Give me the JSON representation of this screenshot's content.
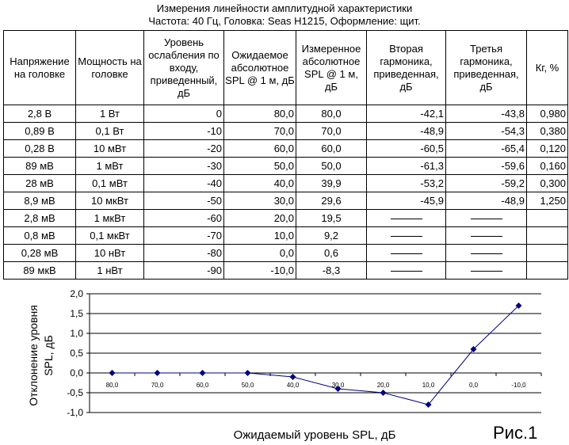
{
  "title_line1": "Измерения линейности амплитудной характеристики",
  "title_line2": "Частота: 40 Гц, Головка: Seas H1215, Оформление: щит.",
  "table": {
    "headers": [
      "Напряжение на головке",
      "Мощность на головке",
      "Уровень ослабления по входу, приведенный, дБ",
      "Ожидаемое абсолютное SPL @ 1 м, дБ",
      "Измеренное абсолютное SPL @ 1 м, дБ",
      "Вторая гармоника, приведенная, дБ",
      "Третья гармоника, приведенная, дБ",
      "Кг, %"
    ],
    "rows": [
      [
        "2,8 В",
        "1 Вт",
        "0",
        "80,0",
        "80,0",
        "-42,1",
        "-43,8",
        "0,980"
      ],
      [
        "0,89 В",
        "0,1 Вт",
        "-10",
        "70,0",
        "70,0",
        "-48,9",
        "-54,3",
        "0,380"
      ],
      [
        "0,28 В",
        "10 мВт",
        "-20",
        "60,0",
        "60,0",
        "-60,5",
        "-65,4",
        "0,120"
      ],
      [
        "89 мВ",
        "1 мВт",
        "-30",
        "50,0",
        "50,0",
        "-61,3",
        "-59,6",
        "0,160"
      ],
      [
        "28 мВ",
        "0,1 мВт",
        "-40",
        "40,0",
        "39,9",
        "-53,2",
        "-59,2",
        "0,300"
      ],
      [
        "8,9 мВ",
        "10 мкВт",
        "-50",
        "30,0",
        "29,6",
        "-45,9",
        "-48,9",
        "1,250"
      ],
      [
        "2,8 мВ",
        "1 мкВт",
        "-60",
        "20,0",
        "19,5",
        "",
        "",
        ""
      ],
      [
        "0,8 мВ",
        "0,1 мкВт",
        "-70",
        "10,0",
        "9,2",
        "",
        "",
        ""
      ],
      [
        "0,28 мВ",
        "10 нВт",
        "-80",
        "0,0",
        "0,6",
        "",
        "",
        ""
      ],
      [
        "89 мкВ",
        "1 нВт",
        "-90",
        "-10,0",
        "-8,3",
        "",
        "",
        ""
      ]
    ]
  },
  "chart_data": {
    "type": "line",
    "categories": [
      "80,0",
      "70,0",
      "60,0",
      "50,0",
      "40,0",
      "30,0",
      "20,0",
      "10,0",
      "0,0",
      "-10,0"
    ],
    "values": [
      0.0,
      0.0,
      0.0,
      0.0,
      -0.1,
      -0.4,
      -0.5,
      -0.8,
      0.6,
      1.7
    ],
    "ylim": [
      -1.0,
      2.0
    ],
    "yticks": [
      "2,0",
      "1,5",
      "1,0",
      "0,5",
      "0,0",
      "-0,5",
      "-1,0"
    ],
    "ylabel_line1": "Отклонение уровня",
    "ylabel_line2": "SPL, дБ",
    "xlabel": "Ожидаемый уровень SPL, дБ",
    "series_color": "#000080",
    "marker": "diamond"
  },
  "figure_label": "Рис.1"
}
